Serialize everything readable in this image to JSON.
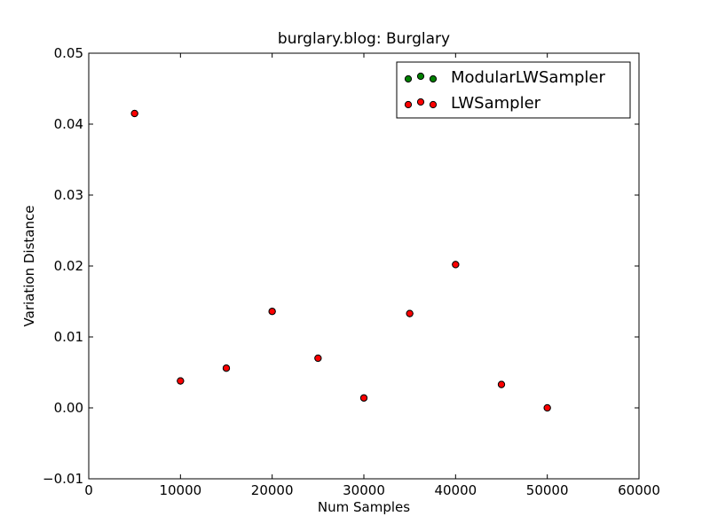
{
  "chart_data": {
    "type": "scatter",
    "title": "burglary.blog: Burglary",
    "xlabel": "Num Samples",
    "ylabel": "Variation Distance",
    "xlim": [
      0,
      60000
    ],
    "ylim": [
      -0.01,
      0.05
    ],
    "x_ticks": [
      0,
      10000,
      20000,
      30000,
      40000,
      50000,
      60000
    ],
    "x_tick_labels": [
      "0",
      "10000",
      "20000",
      "30000",
      "40000",
      "50000",
      "60000"
    ],
    "y_ticks": [
      -0.01,
      0.0,
      0.01,
      0.02,
      0.03,
      0.04,
      0.05
    ],
    "y_tick_labels": [
      "−0.01",
      "0.00",
      "0.01",
      "0.02",
      "0.03",
      "0.04",
      "0.05"
    ],
    "grid": false,
    "legend_position": "top-right",
    "series": [
      {
        "name": "ModularLWSampler",
        "color": "#008000",
        "x": [
          5000,
          10000,
          15000,
          20000,
          25000,
          30000,
          35000,
          40000,
          45000,
          50000
        ],
        "y": [
          0.0415,
          0.0038,
          0.0056,
          0.0136,
          0.007,
          0.0014,
          0.0133,
          0.0202,
          0.0033,
          0.0
        ]
      },
      {
        "name": "LWSampler",
        "color": "#ff0000",
        "x": [
          5000,
          10000,
          15000,
          20000,
          25000,
          30000,
          35000,
          40000,
          45000,
          50000
        ],
        "y": [
          0.0415,
          0.0038,
          0.0056,
          0.0136,
          0.007,
          0.0014,
          0.0133,
          0.0202,
          0.0033,
          0.0
        ]
      }
    ]
  }
}
